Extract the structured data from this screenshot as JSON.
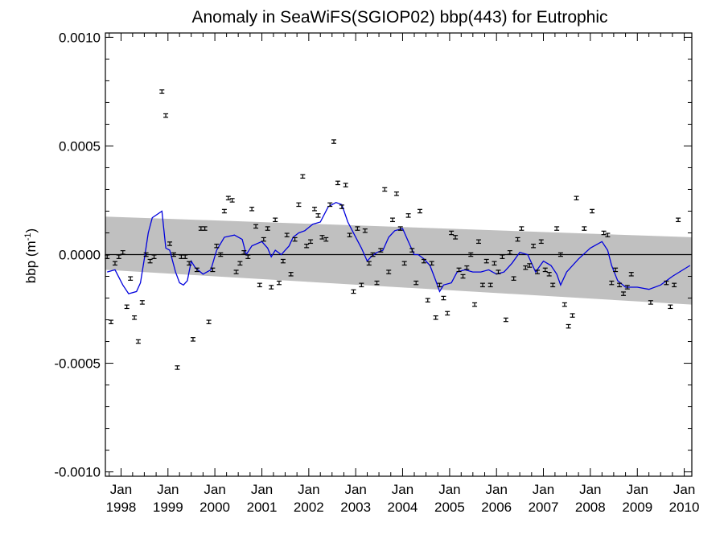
{
  "chart_data": {
    "type": "scatter",
    "title": "Anomaly in SeaWiFS(SGIOP02) bbp(443) for Eutrophic",
    "ylabel": {
      "main": "bbp (m",
      "sup": "-1",
      "close": ")"
    },
    "xlabel": "",
    "xlim": [
      "1997-09-01",
      "2010-03-01"
    ],
    "ylim": [
      -0.00102,
      0.00102
    ],
    "yticks": [
      {
        "value": 0.001,
        "label": "0.0010"
      },
      {
        "value": 0.0005,
        "label": "0.0005"
      },
      {
        "value": 0.0,
        "label": "0.0000"
      },
      {
        "value": -0.0005,
        "label": "-0.0005"
      },
      {
        "value": -0.001,
        "label": "-0.0010"
      }
    ],
    "xticks": [
      {
        "date": "1998-01-01",
        "month": "Jan",
        "year": "1998"
      },
      {
        "date": "1999-01-01",
        "month": "Jan",
        "year": "1999"
      },
      {
        "date": "2000-01-01",
        "month": "Jan",
        "year": "2000"
      },
      {
        "date": "2001-01-01",
        "month": "Jan",
        "year": "2001"
      },
      {
        "date": "2002-01-01",
        "month": "Jan",
        "year": "2002"
      },
      {
        "date": "2003-01-01",
        "month": "Jan",
        "year": "2003"
      },
      {
        "date": "2004-01-01",
        "month": "Jan",
        "year": "2004"
      },
      {
        "date": "2005-01-01",
        "month": "Jan",
        "year": "2005"
      },
      {
        "date": "2006-01-01",
        "month": "Jan",
        "year": "2006"
      },
      {
        "date": "2007-01-01",
        "month": "Jan",
        "year": "2007"
      },
      {
        "date": "2008-01-01",
        "month": "Jan",
        "year": "2008"
      },
      {
        "date": "2009-01-01",
        "month": "Jan",
        "year": "2009"
      },
      {
        "date": "2010-01-01",
        "month": "Jan",
        "year": "2010"
      }
    ],
    "reference_line": 0.0,
    "trend_band": {
      "start": {
        "date": "1997-09-01",
        "upper": 0.000175,
        "lower": -7e-05
      },
      "end": {
        "date": "2010-03-01",
        "upper": 8e-05,
        "lower": -0.00023
      }
    },
    "error_half_width": 8e-06,
    "anomalies": [
      {
        "date": "1997-09-15",
        "value": -1e-05
      },
      {
        "date": "1997-10-15",
        "value": -0.00031
      },
      {
        "date": "1997-11-15",
        "value": -4e-05
      },
      {
        "date": "1997-12-15",
        "value": -1e-05
      },
      {
        "date": "1998-01-15",
        "value": 1e-05
      },
      {
        "date": "1998-02-15",
        "value": -0.00024
      },
      {
        "date": "1998-03-15",
        "value": -0.00011
      },
      {
        "date": "1998-04-15",
        "value": -0.00029
      },
      {
        "date": "1998-05-15",
        "value": -0.0004
      },
      {
        "date": "1998-06-15",
        "value": -0.00022
      },
      {
        "date": "1998-07-15",
        "value": 0.0
      },
      {
        "date": "1998-08-15",
        "value": -3e-05
      },
      {
        "date": "1998-09-15",
        "value": -1e-05
      },
      {
        "date": "1998-11-15",
        "value": 0.00075
      },
      {
        "date": "1998-12-15",
        "value": 0.00064
      },
      {
        "date": "1999-01-15",
        "value": 5e-05
      },
      {
        "date": "1999-02-15",
        "value": 0.0
      },
      {
        "date": "1999-03-15",
        "value": -0.00052
      },
      {
        "date": "1999-04-15",
        "value": -1e-05
      },
      {
        "date": "1999-05-15",
        "value": -1e-05
      },
      {
        "date": "1999-06-15",
        "value": -4e-05
      },
      {
        "date": "1999-07-15",
        "value": -0.00039
      },
      {
        "date": "1999-08-15",
        "value": -7e-05
      },
      {
        "date": "1999-09-15",
        "value": 0.00012
      },
      {
        "date": "1999-10-15",
        "value": 0.00012
      },
      {
        "date": "1999-11-15",
        "value": -0.00031
      },
      {
        "date": "1999-12-15",
        "value": -7e-05
      },
      {
        "date": "2000-01-15",
        "value": 4e-05
      },
      {
        "date": "2000-02-15",
        "value": 0.0
      },
      {
        "date": "2000-03-15",
        "value": 0.0002
      },
      {
        "date": "2000-04-15",
        "value": 0.00026
      },
      {
        "date": "2000-05-15",
        "value": 0.00025
      },
      {
        "date": "2000-06-15",
        "value": -8e-05
      },
      {
        "date": "2000-07-15",
        "value": -4e-05
      },
      {
        "date": "2000-08-15",
        "value": 1e-05
      },
      {
        "date": "2000-09-15",
        "value": -1e-05
      },
      {
        "date": "2000-10-15",
        "value": 0.00021
      },
      {
        "date": "2000-11-15",
        "value": 0.00013
      },
      {
        "date": "2000-12-15",
        "value": -0.00014
      },
      {
        "date": "2001-01-15",
        "value": 7e-05
      },
      {
        "date": "2001-02-15",
        "value": 0.00012
      },
      {
        "date": "2001-03-15",
        "value": -0.00015
      },
      {
        "date": "2001-04-15",
        "value": 0.00016
      },
      {
        "date": "2001-05-15",
        "value": -0.00013
      },
      {
        "date": "2001-06-15",
        "value": -3e-05
      },
      {
        "date": "2001-07-15",
        "value": 9e-05
      },
      {
        "date": "2001-08-15",
        "value": -9e-05
      },
      {
        "date": "2001-09-15",
        "value": 7e-05
      },
      {
        "date": "2001-10-15",
        "value": 0.00023
      },
      {
        "date": "2001-11-15",
        "value": 0.00036
      },
      {
        "date": "2001-12-15",
        "value": 4e-05
      },
      {
        "date": "2002-01-15",
        "value": 6e-05
      },
      {
        "date": "2002-02-15",
        "value": 0.00021
      },
      {
        "date": "2002-03-15",
        "value": 0.00018
      },
      {
        "date": "2002-04-15",
        "value": 8e-05
      },
      {
        "date": "2002-05-15",
        "value": 7e-05
      },
      {
        "date": "2002-06-15",
        "value": 0.00023
      },
      {
        "date": "2002-07-15",
        "value": 0.00052
      },
      {
        "date": "2002-08-15",
        "value": 0.00033
      },
      {
        "date": "2002-09-15",
        "value": 0.00022
      },
      {
        "date": "2002-10-15",
        "value": 0.00032
      },
      {
        "date": "2002-11-15",
        "value": 9e-05
      },
      {
        "date": "2002-12-15",
        "value": -0.00017
      },
      {
        "date": "2003-01-15",
        "value": 0.00012
      },
      {
        "date": "2003-02-15",
        "value": -0.00014
      },
      {
        "date": "2003-03-15",
        "value": 0.00011
      },
      {
        "date": "2003-04-15",
        "value": -4e-05
      },
      {
        "date": "2003-05-15",
        "value": 0.0
      },
      {
        "date": "2003-06-15",
        "value": -0.00013
      },
      {
        "date": "2003-07-15",
        "value": 2e-05
      },
      {
        "date": "2003-08-15",
        "value": 0.0003
      },
      {
        "date": "2003-09-15",
        "value": -8e-05
      },
      {
        "date": "2003-10-15",
        "value": 0.00016
      },
      {
        "date": "2003-11-15",
        "value": 0.00028
      },
      {
        "date": "2003-12-15",
        "value": 0.00012
      },
      {
        "date": "2004-01-15",
        "value": -4e-05
      },
      {
        "date": "2004-02-15",
        "value": 0.00018
      },
      {
        "date": "2004-03-15",
        "value": 2e-05
      },
      {
        "date": "2004-04-15",
        "value": -0.00013
      },
      {
        "date": "2004-05-15",
        "value": 0.0002
      },
      {
        "date": "2004-06-15",
        "value": -3e-05
      },
      {
        "date": "2004-07-15",
        "value": -0.00021
      },
      {
        "date": "2004-08-15",
        "value": -4e-05
      },
      {
        "date": "2004-09-15",
        "value": -0.00029
      },
      {
        "date": "2004-10-15",
        "value": -0.00014
      },
      {
        "date": "2004-11-15",
        "value": -0.0002
      },
      {
        "date": "2004-12-15",
        "value": -0.00027
      },
      {
        "date": "2005-01-15",
        "value": 0.0001
      },
      {
        "date": "2005-02-15",
        "value": 8e-05
      },
      {
        "date": "2005-03-15",
        "value": -7e-05
      },
      {
        "date": "2005-04-15",
        "value": -0.0001
      },
      {
        "date": "2005-05-15",
        "value": -6e-05
      },
      {
        "date": "2005-06-15",
        "value": 0.0
      },
      {
        "date": "2005-07-15",
        "value": -0.00023
      },
      {
        "date": "2005-08-15",
        "value": 6e-05
      },
      {
        "date": "2005-09-15",
        "value": -0.00014
      },
      {
        "date": "2005-10-15",
        "value": -3e-05
      },
      {
        "date": "2005-11-15",
        "value": -0.00014
      },
      {
        "date": "2005-12-15",
        "value": -4e-05
      },
      {
        "date": "2006-01-15",
        "value": -8e-05
      },
      {
        "date": "2006-02-15",
        "value": -1e-05
      },
      {
        "date": "2006-03-15",
        "value": -0.0003
      },
      {
        "date": "2006-04-15",
        "value": 1e-05
      },
      {
        "date": "2006-05-15",
        "value": -0.00011
      },
      {
        "date": "2006-06-15",
        "value": 7e-05
      },
      {
        "date": "2006-07-15",
        "value": 0.00012
      },
      {
        "date": "2006-08-15",
        "value": -6e-05
      },
      {
        "date": "2006-09-15",
        "value": -5e-05
      },
      {
        "date": "2006-10-15",
        "value": 4e-05
      },
      {
        "date": "2006-11-15",
        "value": -8e-05
      },
      {
        "date": "2006-12-15",
        "value": 6e-05
      },
      {
        "date": "2007-01-15",
        "value": -7e-05
      },
      {
        "date": "2007-02-15",
        "value": -9e-05
      },
      {
        "date": "2007-03-15",
        "value": -0.00014
      },
      {
        "date": "2007-04-15",
        "value": 0.00012
      },
      {
        "date": "2007-05-15",
        "value": 0.0
      },
      {
        "date": "2007-06-15",
        "value": -0.00023
      },
      {
        "date": "2007-07-15",
        "value": -0.00033
      },
      {
        "date": "2007-08-15",
        "value": -0.00028
      },
      {
        "date": "2007-09-15",
        "value": 0.00026
      },
      {
        "date": "2007-11-15",
        "value": 0.00012
      },
      {
        "date": "2008-01-15",
        "value": 0.0002
      },
      {
        "date": "2008-04-15",
        "value": 0.0001
      },
      {
        "date": "2008-05-15",
        "value": 9e-05
      },
      {
        "date": "2008-06-15",
        "value": -0.00013
      },
      {
        "date": "2008-07-15",
        "value": -7e-05
      },
      {
        "date": "2008-08-15",
        "value": -0.00014
      },
      {
        "date": "2008-09-15",
        "value": -0.00018
      },
      {
        "date": "2008-10-15",
        "value": -0.00015
      },
      {
        "date": "2008-11-15",
        "value": -9e-05
      },
      {
        "date": "2009-04-15",
        "value": -0.00022
      },
      {
        "date": "2009-08-15",
        "value": -0.00013
      },
      {
        "date": "2009-09-15",
        "value": -0.00024
      },
      {
        "date": "2009-10-15",
        "value": -0.00014
      },
      {
        "date": "2009-11-15",
        "value": 0.00016
      }
    ],
    "smoothed": [
      {
        "date": "1997-09-15",
        "value": -8e-05
      },
      {
        "date": "1997-11-15",
        "value": -7e-05
      },
      {
        "date": "1998-01-15",
        "value": -0.00014
      },
      {
        "date": "1998-03-01",
        "value": -0.00018
      },
      {
        "date": "1998-05-01",
        "value": -0.00017
      },
      {
        "date": "1998-06-01",
        "value": -0.00013
      },
      {
        "date": "1998-07-01",
        "value": -2e-05
      },
      {
        "date": "1998-08-01",
        "value": 0.0001
      },
      {
        "date": "1998-09-01",
        "value": 0.00017
      },
      {
        "date": "1998-11-15",
        "value": 0.0002
      },
      {
        "date": "1998-12-15",
        "value": 3e-05
      },
      {
        "date": "1999-01-15",
        "value": 2e-05
      },
      {
        "date": "1999-03-01",
        "value": -8e-05
      },
      {
        "date": "1999-04-01",
        "value": -0.00013
      },
      {
        "date": "1999-05-01",
        "value": -0.00014
      },
      {
        "date": "1999-06-01",
        "value": -0.00012
      },
      {
        "date": "1999-07-01",
        "value": -3e-05
      },
      {
        "date": "1999-08-01",
        "value": -6e-05
      },
      {
        "date": "1999-10-01",
        "value": -9e-05
      },
      {
        "date": "1999-12-01",
        "value": -7e-05
      },
      {
        "date": "2000-01-15",
        "value": 2e-05
      },
      {
        "date": "2000-03-15",
        "value": 8e-05
      },
      {
        "date": "2000-06-01",
        "value": 9e-05
      },
      {
        "date": "2000-08-01",
        "value": 7e-05
      },
      {
        "date": "2000-09-01",
        "value": 0.0
      },
      {
        "date": "2000-10-15",
        "value": 4e-05
      },
      {
        "date": "2001-01-01",
        "value": 6e-05
      },
      {
        "date": "2001-02-15",
        "value": 3e-05
      },
      {
        "date": "2001-03-15",
        "value": -1e-05
      },
      {
        "date": "2001-04-15",
        "value": 2e-05
      },
      {
        "date": "2001-06-01",
        "value": 0.0
      },
      {
        "date": "2001-07-01",
        "value": 2e-05
      },
      {
        "date": "2001-08-01",
        "value": 4e-05
      },
      {
        "date": "2001-09-01",
        "value": 8e-05
      },
      {
        "date": "2001-10-15",
        "value": 0.0001
      },
      {
        "date": "2001-12-01",
        "value": 0.00011
      },
      {
        "date": "2002-02-01",
        "value": 0.00014
      },
      {
        "date": "2002-04-01",
        "value": 0.00015
      },
      {
        "date": "2002-06-01",
        "value": 0.00022
      },
      {
        "date": "2002-08-01",
        "value": 0.00024
      },
      {
        "date": "2002-09-15",
        "value": 0.00023
      },
      {
        "date": "2002-11-01",
        "value": 0.00015
      },
      {
        "date": "2003-01-01",
        "value": 8e-05
      },
      {
        "date": "2003-02-15",
        "value": 3e-05
      },
      {
        "date": "2003-04-01",
        "value": -3e-05
      },
      {
        "date": "2003-05-01",
        "value": -1e-05
      },
      {
        "date": "2003-06-15",
        "value": 1e-05
      },
      {
        "date": "2003-08-01",
        "value": 2e-05
      },
      {
        "date": "2003-09-15",
        "value": 8e-05
      },
      {
        "date": "2003-11-01",
        "value": 0.00011
      },
      {
        "date": "2004-01-01",
        "value": 0.00012
      },
      {
        "date": "2004-02-15",
        "value": 6e-05
      },
      {
        "date": "2004-04-01",
        "value": 0.0
      },
      {
        "date": "2004-05-01",
        "value": 0.0
      },
      {
        "date": "2004-06-15",
        "value": -2e-05
      },
      {
        "date": "2004-08-01",
        "value": -5e-05
      },
      {
        "date": "2004-09-15",
        "value": -0.00012
      },
      {
        "date": "2004-10-15",
        "value": -0.00017
      },
      {
        "date": "2004-11-15",
        "value": -0.00014
      },
      {
        "date": "2005-01-15",
        "value": -0.00013
      },
      {
        "date": "2005-03-01",
        "value": -8e-05
      },
      {
        "date": "2005-05-01",
        "value": -7e-05
      },
      {
        "date": "2005-07-01",
        "value": -8e-05
      },
      {
        "date": "2005-09-01",
        "value": -8e-05
      },
      {
        "date": "2005-11-01",
        "value": -7e-05
      },
      {
        "date": "2006-01-01",
        "value": -9e-05
      },
      {
        "date": "2006-03-01",
        "value": -8e-05
      },
      {
        "date": "2006-05-01",
        "value": -4e-05
      },
      {
        "date": "2006-07-01",
        "value": 1e-05
      },
      {
        "date": "2006-09-01",
        "value": 0.0
      },
      {
        "date": "2006-11-01",
        "value": -8e-05
      },
      {
        "date": "2007-01-01",
        "value": -3e-05
      },
      {
        "date": "2007-03-01",
        "value": -5e-05
      },
      {
        "date": "2007-04-15",
        "value": -9e-05
      },
      {
        "date": "2007-05-15",
        "value": -0.00014
      },
      {
        "date": "2007-07-01",
        "value": -8e-05
      },
      {
        "date": "2007-10-01",
        "value": -2e-05
      },
      {
        "date": "2008-01-01",
        "value": 3e-05
      },
      {
        "date": "2008-04-01",
        "value": 6e-05
      },
      {
        "date": "2008-05-15",
        "value": 2e-05
      },
      {
        "date": "2008-06-15",
        "value": -5e-05
      },
      {
        "date": "2008-08-01",
        "value": -0.00012
      },
      {
        "date": "2008-10-01",
        "value": -0.00015
      },
      {
        "date": "2009-01-01",
        "value": -0.00015
      },
      {
        "date": "2009-04-01",
        "value": -0.00016
      },
      {
        "date": "2009-07-01",
        "value": -0.00014
      },
      {
        "date": "2009-10-01",
        "value": -0.0001
      },
      {
        "date": "2010-02-15",
        "value": -5e-05
      }
    ],
    "colors": {
      "smoothed": "#0000dd",
      "band": "#c0c0c0",
      "points": "#000000",
      "axis": "#000000"
    },
    "grid": false,
    "legend": "none"
  }
}
